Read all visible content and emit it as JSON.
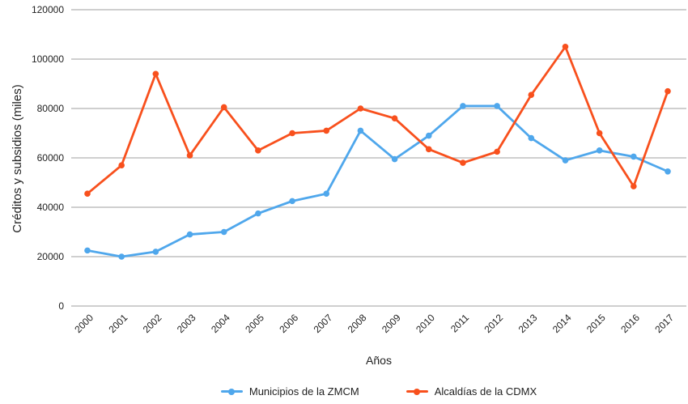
{
  "chart_data": {
    "type": "line",
    "title": "",
    "xlabel": "Años",
    "ylabel": "Créditos y subsidios (miles)",
    "categories": [
      "2000",
      "2001",
      "2002",
      "2003",
      "2004",
      "2005",
      "2006",
      "2007",
      "2008",
      "2009",
      "2010",
      "2011",
      "2012",
      "2013",
      "2014",
      "2015",
      "2016",
      "2017"
    ],
    "series": [
      {
        "name": "Municipios de la ZMCM",
        "color": "#4FA7EC",
        "values": [
          22500,
          20000,
          22000,
          29000,
          30000,
          37500,
          42500,
          45500,
          71000,
          59500,
          69000,
          81000,
          81000,
          68000,
          59000,
          63000,
          60500,
          54500
        ]
      },
      {
        "name": "Alcaldías de la CDMX",
        "color": "#F8501D",
        "values": [
          45500,
          57000,
          94000,
          61000,
          80500,
          63000,
          70000,
          71000,
          80000,
          76000,
          63500,
          58000,
          62500,
          85500,
          105000,
          70000,
          48500,
          87000
        ]
      }
    ],
    "ylim": [
      0,
      120000
    ],
    "y_tick_step": 20000,
    "y_tick_labels": [
      "0",
      "20000",
      "40000",
      "60000",
      "80000",
      "100000",
      "120000"
    ],
    "grid": true,
    "legend_position": "bottom",
    "gridline_color": "#BFBFBF",
    "text_color": "#212121"
  }
}
